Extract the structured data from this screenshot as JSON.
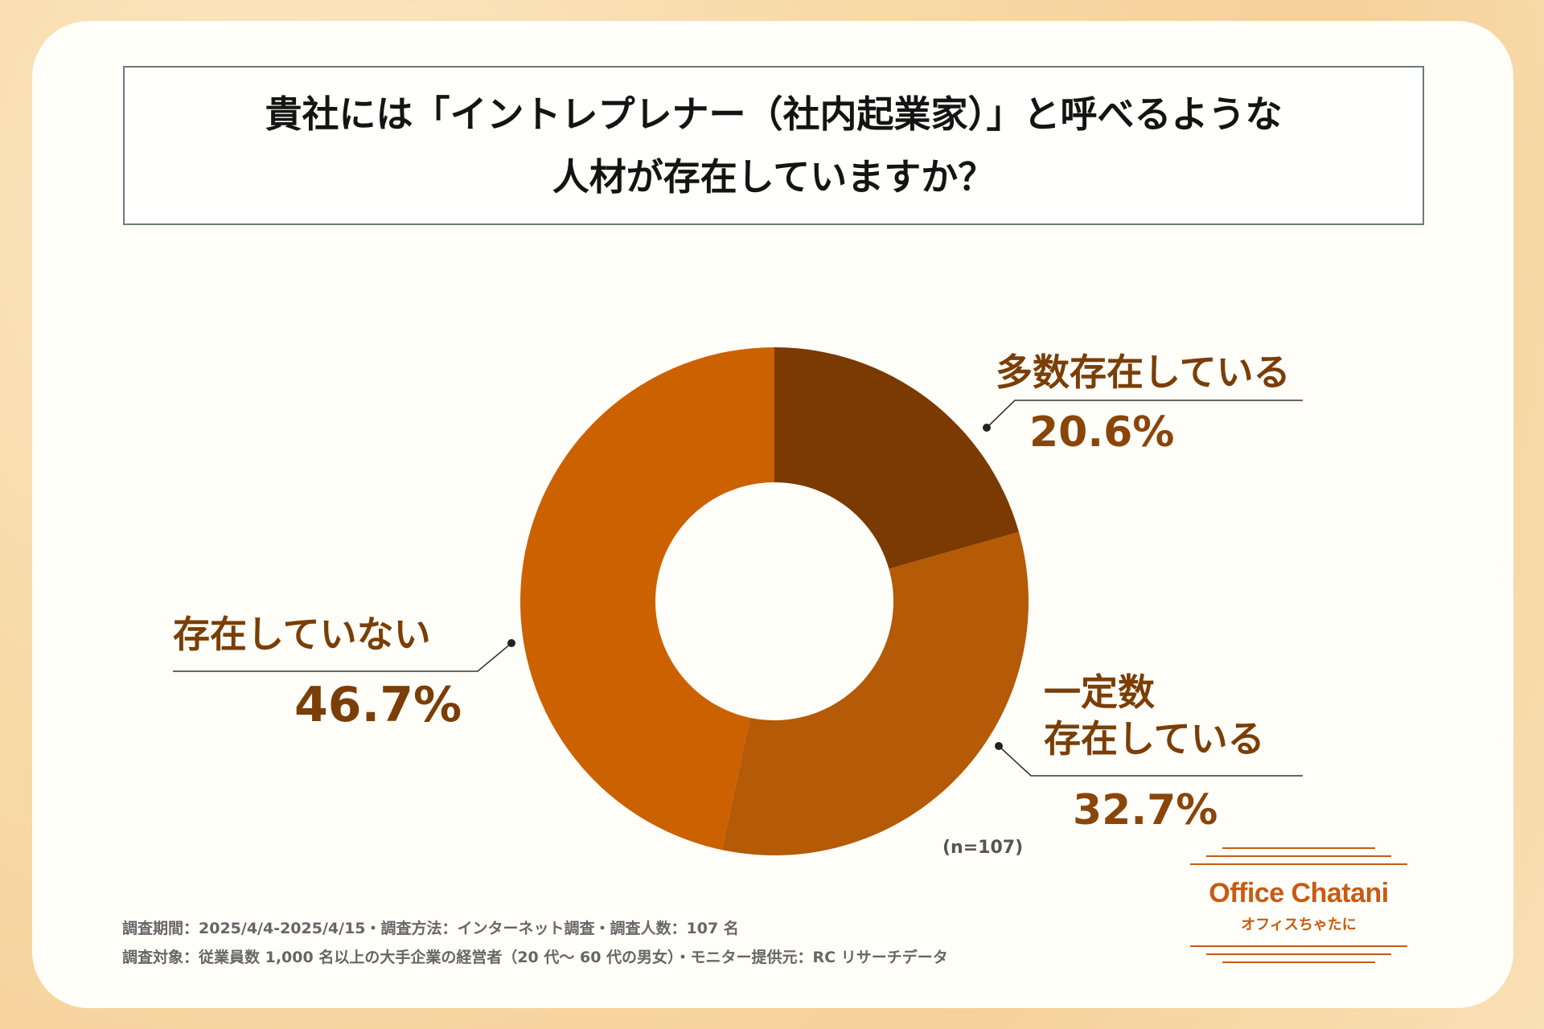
{
  "title": {
    "line1": "貴社には「イントレプレナー（社内起業家）」と呼べるような",
    "line2": "人材が存在していますか？"
  },
  "chart_data": {
    "type": "pie",
    "style": "donut",
    "slices": [
      {
        "label": "多数存在している",
        "value": 20.6,
        "display": "20.6%",
        "color": "#7a3a02"
      },
      {
        "label": "一定数存在している",
        "label_lines": [
          "一定数",
          "存在している"
        ],
        "value": 32.7,
        "display": "32.7%",
        "color": "#b55a06"
      },
      {
        "label": "存在していない",
        "value": 46.7,
        "display": "46.7%",
        "color": "#cc6100"
      }
    ],
    "n_note": "(n=107)"
  },
  "footer": {
    "line1": "調査期間：2025/4/4-2025/4/15・調査方法：インターネット調査・調査人数：107 名",
    "line2": "調査対象：従業員数 1,000 名以上の大手企業の経営者（20 代～ 60 代の男女）・モニター提供元：RC リサーチデータ"
  },
  "logo": {
    "name_en": "Office Chatani",
    "name_ja": "オフィスちゃたに",
    "color": "#c85a12"
  }
}
